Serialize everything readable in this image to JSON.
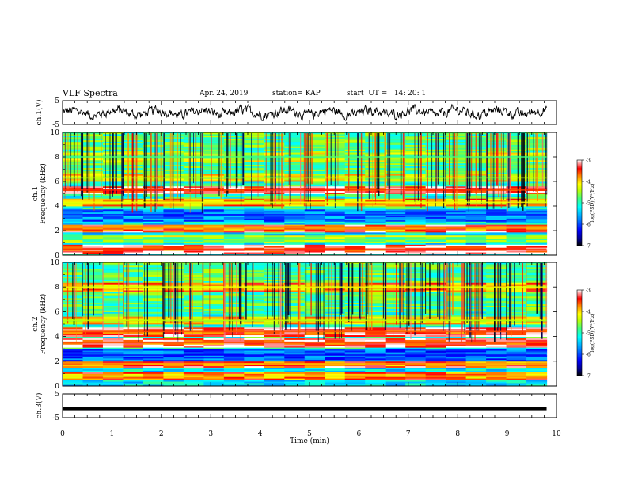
{
  "header": {
    "title": "VLF Spectra",
    "date": "Apr. 24, 2019",
    "station": "station= KAP",
    "start": "start  UT =   14: 20: 1"
  },
  "colors": {
    "background": "#ffffff",
    "axis": "#000000",
    "colormap": [
      "#000000",
      "#000080",
      "#0000ff",
      "#0080ff",
      "#00ffff",
      "#80ff80",
      "#ffff00",
      "#ff8000",
      "#ff0000",
      "#ffc0c0",
      "#ffffff"
    ]
  },
  "chart_data": [
    {
      "type": "line",
      "name": "ch1-waveform",
      "ylabel": "ch.1(V)",
      "ylim": [
        -5,
        5
      ],
      "yticks": [
        "5",
        "-5"
      ],
      "xlim": [
        0,
        10
      ],
      "description_values": "noisy waveform oscillating roughly between -3 and +3 V over 0 to 9.8 min"
    },
    {
      "type": "heatmap",
      "name": "ch1-spectrogram",
      "ylabel": "ch.1\nFrequency  (kHz)",
      "ylabel_lines": [
        "ch.1",
        "Frequency  (kHz)"
      ],
      "ylim": [
        0,
        10
      ],
      "yticks": [
        "0",
        "2",
        "4",
        "6",
        "8",
        "10"
      ],
      "xlim": [
        0,
        9.8
      ],
      "colorbar": {
        "label": "log(PSD)(V²/Hz)",
        "range": [
          -7,
          -3
        ],
        "ticks": [
          "-3",
          "-4",
          "-5",
          "-6",
          "-7"
        ]
      },
      "bands": [
        {
          "f": 0.5,
          "level": -3.5
        },
        {
          "f": 1.3,
          "level": -4.8
        },
        {
          "f": 2.2,
          "level": -3.8
        },
        {
          "f": 3.3,
          "level": -6.2
        },
        {
          "f": 4.3,
          "level": -4.2
        },
        {
          "f": 5.3,
          "level": -3.5
        },
        {
          "f": 6.3,
          "level": -4.5
        },
        {
          "f": 8.0,
          "level": -4.8
        }
      ]
    },
    {
      "type": "heatmap",
      "name": "ch2-spectrogram",
      "ylabel_lines": [
        "ch.2",
        "Frequency  (kHz)"
      ],
      "ylim": [
        0,
        10
      ],
      "yticks": [
        "0",
        "2",
        "4",
        "6",
        "8",
        "10"
      ],
      "xlim": [
        0,
        9.8
      ],
      "colorbar": {
        "label": "log(PSD)(V²/Hz)",
        "range": [
          -7,
          -3
        ],
        "ticks": [
          "-3",
          "-4",
          "-5",
          "-6",
          "-7"
        ]
      },
      "bands": [
        {
          "f": 0.8,
          "level": -4.0
        },
        {
          "f": 1.8,
          "level": -3.8
        },
        {
          "f": 2.5,
          "level": -6.3
        },
        {
          "f": 3.5,
          "level": -3.6
        },
        {
          "f": 4.4,
          "level": -3.6
        },
        {
          "f": 5.3,
          "level": -4.4
        },
        {
          "f": 8.0,
          "level": -4.2
        }
      ]
    },
    {
      "type": "line",
      "name": "ch3-waveform",
      "ylabel": "ch.3(V)",
      "ylim": [
        -5,
        5
      ],
      "yticks": [
        "5",
        "-5"
      ],
      "xlim": [
        0,
        10
      ],
      "constant_value": -1.2
    }
  ],
  "xaxis": {
    "label": "Time  (min)",
    "range": [
      0,
      10
    ],
    "ticks": [
      "0",
      "1",
      "2",
      "3",
      "4",
      "5",
      "6",
      "7",
      "8",
      "9",
      "10"
    ]
  }
}
